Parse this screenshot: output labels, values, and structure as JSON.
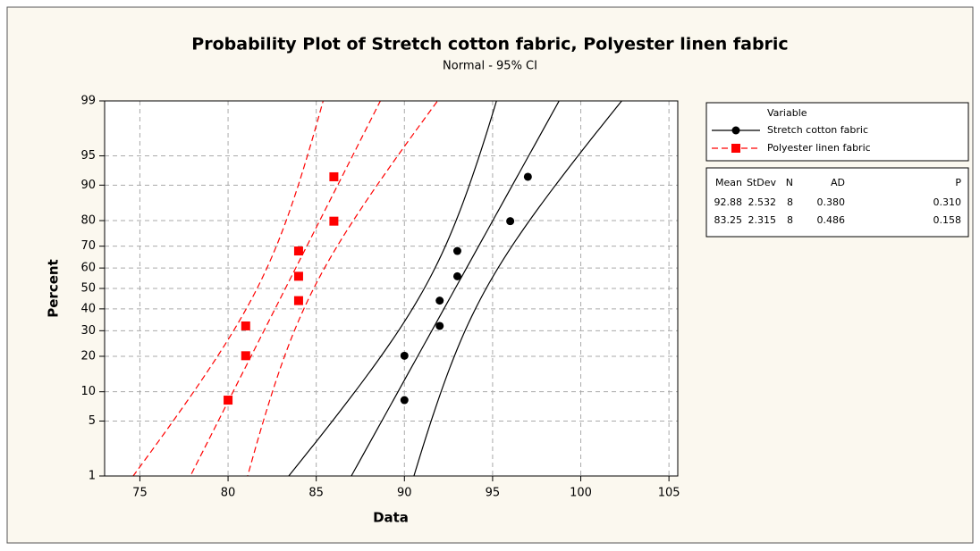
{
  "chart_data": {
    "type": "probability",
    "title": "Probability Plot of Stretch cotton fabric, Polyester linen fabric",
    "subtitle": "Normal - 95% CI",
    "xlabel": "Data",
    "ylabel": "Percent",
    "xlim": [
      73,
      105.5
    ],
    "xticks": [
      75,
      80,
      85,
      90,
      95,
      100,
      105
    ],
    "ylim": [
      1,
      99
    ],
    "yticks": [
      1,
      5,
      10,
      20,
      30,
      40,
      50,
      60,
      70,
      80,
      90,
      95,
      99
    ],
    "y_scale": "normal-probability",
    "grid": true,
    "legend_title": "Variable",
    "series": [
      {
        "name": "Stretch cotton fabric",
        "color": "#000000",
        "marker": "circle",
        "line": "solid",
        "x": [
          90,
          90,
          92,
          92,
          93,
          93,
          96,
          97
        ],
        "values": [
          8.3,
          20.2,
          32.1,
          44.0,
          56.0,
          67.9,
          79.8,
          91.7
        ]
      },
      {
        "name": "Polyester linen fabric",
        "color": "#ff0000",
        "marker": "square",
        "line": "dashed",
        "x": [
          80,
          81,
          81,
          84,
          84,
          84,
          86,
          86
        ],
        "values": [
          8.3,
          20.2,
          32.1,
          44.0,
          56.0,
          67.9,
          79.8,
          91.7
        ]
      }
    ],
    "stats": {
      "columns": [
        "Mean",
        "StDev",
        "N",
        "AD",
        "P"
      ],
      "rows": [
        [
          "92.88",
          "2.532",
          "8",
          "0.380",
          "0.310"
        ],
        [
          "83.25",
          "2.315",
          "8",
          "0.486",
          "0.158"
        ]
      ]
    }
  }
}
